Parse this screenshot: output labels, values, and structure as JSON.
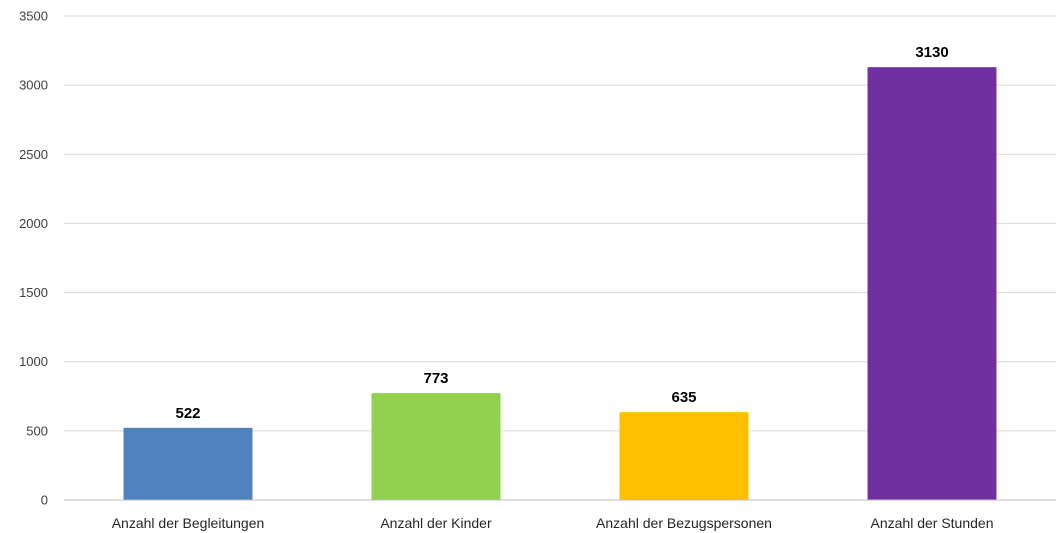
{
  "chart_data": {
    "type": "bar",
    "title": "",
    "xlabel": "",
    "ylabel": "",
    "categories": [
      "Anzahl der Begleitungen",
      "Anzahl der Kinder",
      "Anzahl der Bezugspersonen",
      "Anzahl der Stunden"
    ],
    "values": [
      522,
      773,
      635,
      3130
    ],
    "data_labels": [
      "522",
      "773",
      "635",
      "3130"
    ],
    "colors": [
      "#4f81bd",
      "#92d050",
      "#ffc000",
      "#7030a0"
    ],
    "ylim": [
      0,
      3500
    ],
    "y_ticks": [
      0,
      500,
      1000,
      1500,
      2000,
      2500,
      3000,
      3500
    ],
    "y_tick_labels": [
      "0",
      "500",
      "1000",
      "1500",
      "2000",
      "2500",
      "3000",
      "3500"
    ],
    "grid": true,
    "legend": "none"
  }
}
